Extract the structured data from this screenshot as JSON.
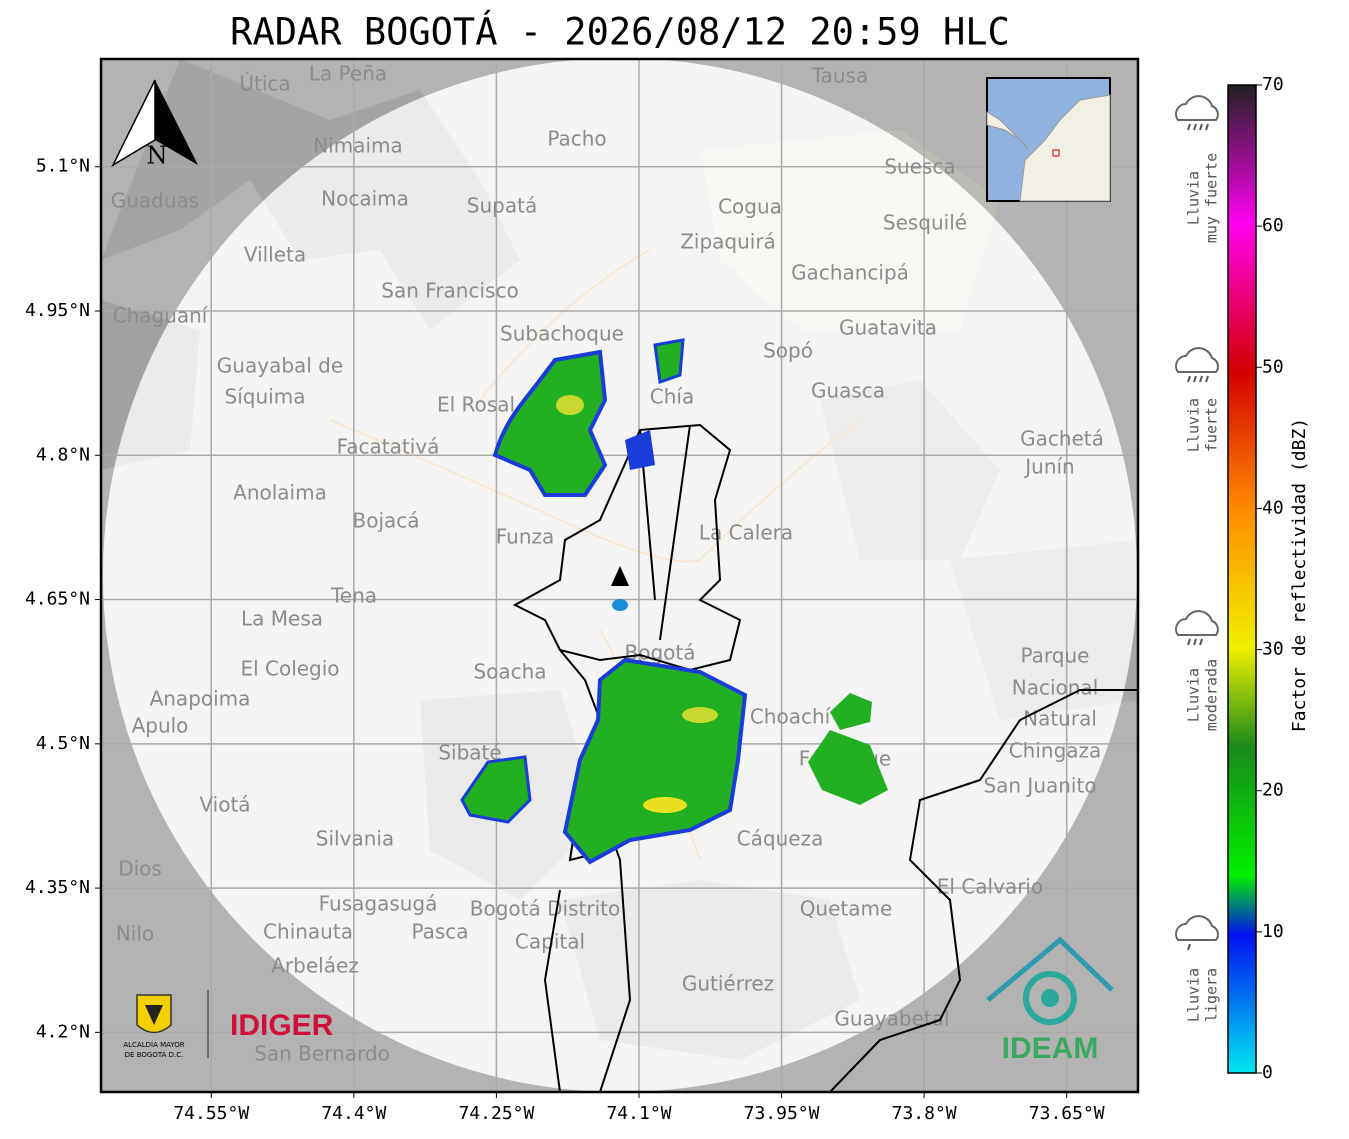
{
  "title": "RADAR BOGOTÁ - 2026/08/12 20:59 HLC",
  "map": {
    "xlim": [
      -74.666,
      -73.575
    ],
    "ylim": [
      4.138,
      5.212
    ],
    "xticks": [
      {
        "value": -74.55,
        "label": "74.55°W"
      },
      {
        "value": -74.4,
        "label": "74.4°W"
      },
      {
        "value": -74.25,
        "label": "74.25°W"
      },
      {
        "value": -74.1,
        "label": "74.1°W"
      },
      {
        "value": -73.95,
        "label": "73.95°W"
      },
      {
        "value": -73.8,
        "label": "73.8°W"
      },
      {
        "value": -73.65,
        "label": "73.65°W"
      }
    ],
    "yticks": [
      {
        "value": 4.2,
        "label": "4.2°N"
      },
      {
        "value": 4.35,
        "label": "4.35°N"
      },
      {
        "value": 4.5,
        "label": "4.5°N"
      },
      {
        "value": 4.65,
        "label": "4.65°N"
      },
      {
        "value": 4.8,
        "label": "4.8°N"
      },
      {
        "value": 4.95,
        "label": "4.95°N"
      },
      {
        "value": 5.1,
        "label": "5.1°N"
      }
    ],
    "grid": true,
    "north": "N",
    "places": [
      "La Peña",
      "Útica",
      "Tausa",
      "Pacho",
      "Nimaima",
      "Nocaima",
      "Supatá",
      "Guaduas",
      "Cogua",
      "Suesca",
      "Sesquilé",
      "Zipaquirá",
      "Villeta",
      "San Francisco",
      "Gachancipá",
      "Chaguaní",
      "Subachoque",
      "Guatavita",
      "Sopó",
      "Guayabal de",
      "Síquima",
      "Chía",
      "El Rosal",
      "Guasca",
      "Facatativá",
      "Gachetá",
      "Junín",
      "Anolaima",
      "Bojacá",
      "Funza",
      "La Calera",
      "Tena",
      "La Mesa",
      "Bogotá",
      "El Colegio",
      "Soacha",
      "Parque",
      "Nacional",
      "Natural",
      "Chingaza",
      "Anapoima",
      "Apulo",
      "Choachí",
      "Sibaté",
      "Fómeque",
      "San Juanito",
      "Viotá",
      "Silvania",
      "Cáqueza",
      "Fusagasugá",
      "Bogotá Distrito",
      "Capital",
      "Quetame",
      "El Calvario",
      "Chinauta",
      "Pasca",
      "Arbeláez",
      "Gutiérrez",
      "Nilo",
      "Dios",
      "Guayabetal",
      "San Bernardo"
    ]
  },
  "colorbar": {
    "label": "Factor de reflectividad (dBZ)",
    "lim": [
      0,
      70
    ],
    "ticks": [
      0,
      10,
      20,
      30,
      40,
      50,
      60,
      70
    ]
  },
  "rain_levels": [
    [
      "Lluvia",
      "muy fuerte"
    ],
    [
      "Lluvia",
      "fuerte"
    ],
    [
      "Lluvia",
      "moderada"
    ],
    [
      "Lluvia",
      "ligera"
    ]
  ],
  "logos": {
    "idiger": "IDIGER",
    "ideam": "IDEAM",
    "alcaldia": [
      "ALCALDÍA MAYOR",
      "DE BOGOTÁ D.C."
    ]
  }
}
